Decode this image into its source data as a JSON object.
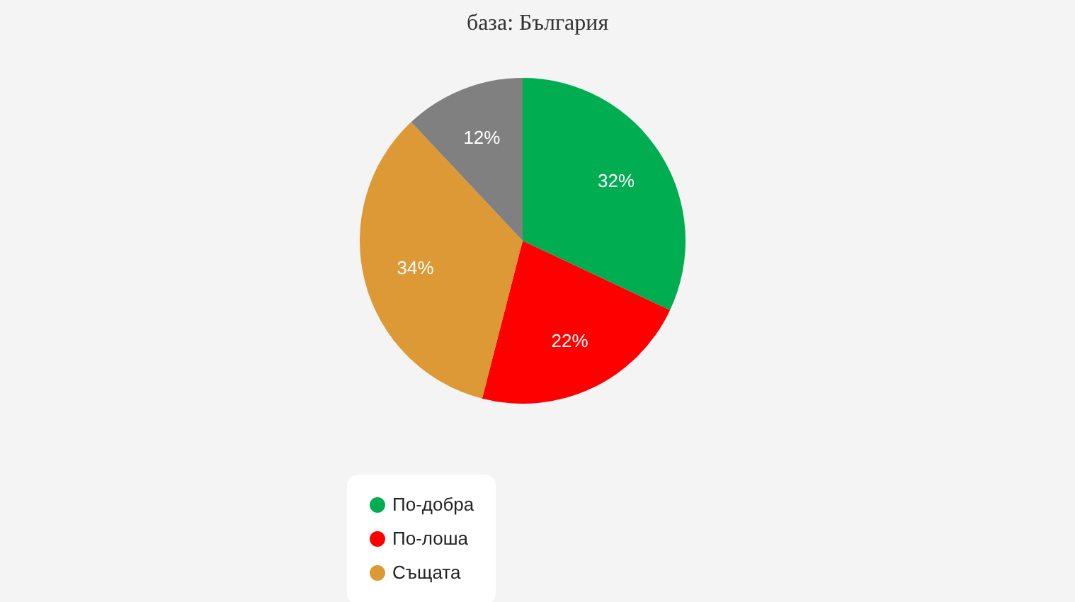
{
  "chart_data": {
    "type": "pie",
    "title": "база: България",
    "categories": [
      "По-добра",
      "По-лоша",
      "Същата",
      null
    ],
    "values": [
      32,
      22,
      34,
      12
    ],
    "colors": [
      "#00ad50",
      "#fe0000",
      "#dc9935",
      "#808080"
    ],
    "value_labels": [
      "32%",
      "22%",
      "34%",
      "12%"
    ],
    "legend": "bottom"
  }
}
